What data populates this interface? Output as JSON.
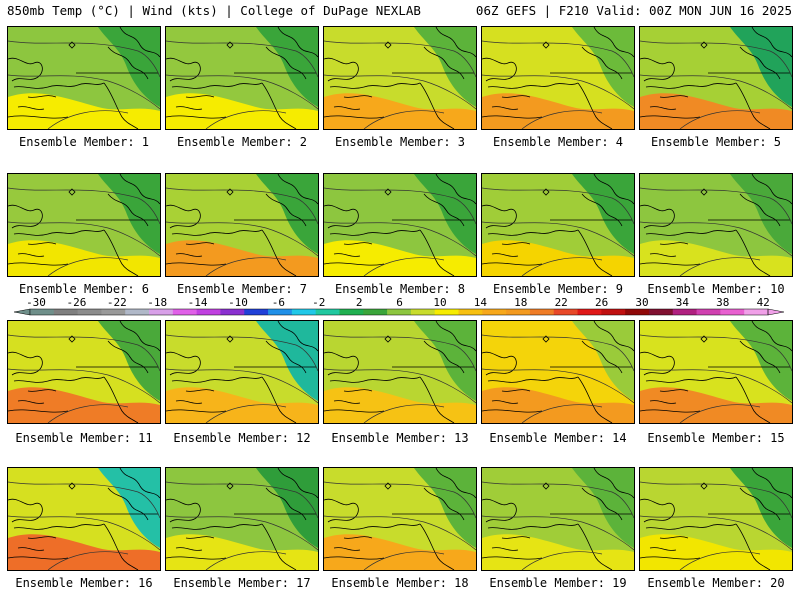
{
  "header": {
    "left": "850mb Temp (°C) | Wind (kts) | College of DuPage NEXLAB",
    "right": "06Z GEFS | F210 Valid: 00Z MON JUN 16 2025"
  },
  "members": [
    {
      "label": "Ensemble Member: 1",
      "base": "#8dc63f",
      "warm": "#f6ec00",
      "cool": "#3aa53a"
    },
    {
      "label": "Ensemble Member: 2",
      "base": "#93c83e",
      "warm": "#f6ec00",
      "cool": "#3aa53a"
    },
    {
      "label": "Ensemble Member: 3",
      "base": "#c8dc2c",
      "warm": "#f7a81b",
      "cool": "#5cb33a"
    },
    {
      "label": "Ensemble Member: 4",
      "base": "#d6e020",
      "warm": "#f39a1f",
      "cool": "#6cbb3a"
    },
    {
      "label": "Ensemble Member: 5",
      "base": "#a6d035",
      "warm": "#f08a24",
      "cool": "#21a35a"
    },
    {
      "label": "Ensemble Member: 6",
      "base": "#97c93d",
      "warm": "#f2e600",
      "cool": "#3aa53a"
    },
    {
      "label": "Ensemble Member: 7",
      "base": "#a9d135",
      "warm": "#f39a1f",
      "cool": "#3aa53a"
    },
    {
      "label": "Ensemble Member: 8",
      "base": "#8dc63f",
      "warm": "#f6ec00",
      "cool": "#3aa53a"
    },
    {
      "label": "Ensemble Member: 9",
      "base": "#a0cd38",
      "warm": "#f5d400",
      "cool": "#3aa53a"
    },
    {
      "label": "Ensemble Member: 10",
      "base": "#8dc63f",
      "warm": "#d8e21e",
      "cool": "#4aa93a"
    },
    {
      "label": "Ensemble Member: 11",
      "base": "#d6e020",
      "warm": "#ef7c26",
      "cool": "#4aa93a"
    },
    {
      "label": "Ensemble Member: 12",
      "base": "#c8dc2c",
      "warm": "#f7b41a",
      "cool": "#1fb89c"
    },
    {
      "label": "Ensemble Member: 13",
      "base": "#b9d631",
      "warm": "#f6c214",
      "cool": "#5cb33a"
    },
    {
      "label": "Ensemble Member: 14",
      "base": "#f4d40a",
      "warm": "#f39a1f",
      "cool": "#9acb3a"
    },
    {
      "label": "Ensemble Member: 15",
      "base": "#d8e21e",
      "warm": "#f08a24",
      "cool": "#5cb33a"
    },
    {
      "label": "Ensemble Member: 16",
      "base": "#d6e020",
      "warm": "#ee6e28",
      "cool": "#24c0a6"
    },
    {
      "label": "Ensemble Member: 17",
      "base": "#8dc63f",
      "warm": "#e6e414",
      "cool": "#2f9d3a"
    },
    {
      "label": "Ensemble Member: 18",
      "base": "#c8dc2c",
      "warm": "#f7a81b",
      "cool": "#5cb33a"
    },
    {
      "label": "Ensemble Member: 19",
      "base": "#a0cd38",
      "warm": "#e6e414",
      "cool": "#5cb33a"
    },
    {
      "label": "Ensemble Member: 20",
      "base": "#b9d631",
      "warm": "#f2e600",
      "cool": "#3aa53a"
    }
  ],
  "colorbar": {
    "labels": [
      "-30",
      "-26",
      "-22",
      "-18",
      "-14",
      "-10",
      "-6",
      "-2",
      "2",
      "6",
      "10",
      "14",
      "18",
      "22",
      "26",
      "30",
      "34",
      "38",
      "42"
    ],
    "colors": [
      "#6f8f8a",
      "#7f7f7f",
      "#8c8c8c",
      "#9a9a9a",
      "#b0b8c8",
      "#d8a0e8",
      "#e060e8",
      "#c040e0",
      "#8a30d0",
      "#2040d8",
      "#2090e8",
      "#20c8e8",
      "#20c8a0",
      "#20b050",
      "#3aa53a",
      "#8dc63f",
      "#c8dc2c",
      "#f6ec00",
      "#f7c010",
      "#f7a81b",
      "#f39a1f",
      "#ef7c26",
      "#e84828",
      "#e01818",
      "#c01010",
      "#900808",
      "#801030",
      "#b02080",
      "#d040b0",
      "#e860d0",
      "#f0a0e8"
    ]
  }
}
